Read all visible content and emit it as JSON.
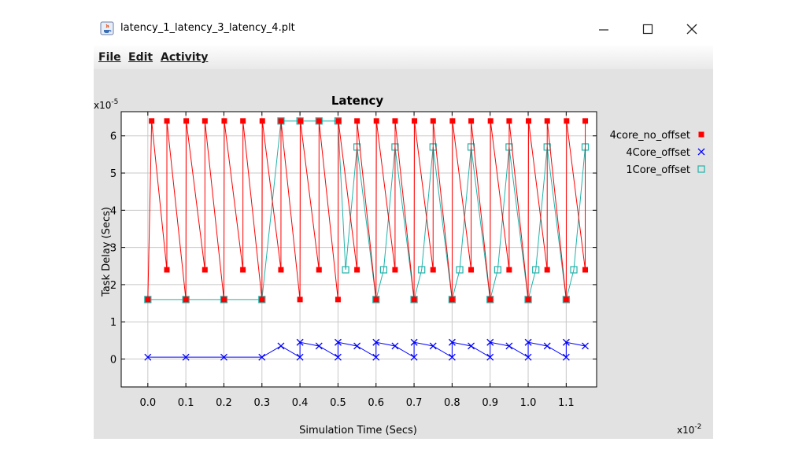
{
  "window": {
    "title": "latency_1_latency_3_latency_4.plt",
    "icon": "java-cup-icon",
    "controls": {
      "minimize": "minimize-icon",
      "maximize": "maximize-icon",
      "close": "close-icon"
    }
  },
  "menu": {
    "file": "File",
    "edit": "Edit",
    "activity": "Activity"
  },
  "chart_data": {
    "type": "line",
    "title": "Latency",
    "xlabel": "Simulation Time (Secs)",
    "ylabel": "Task Delay (Secs)",
    "x_multiplier": "x10",
    "x_multiplier_exp": "-2",
    "y_multiplier": "x10",
    "y_multiplier_exp": "-5",
    "xlim": [
      -0.07,
      1.18
    ],
    "ylim": [
      -0.75,
      6.65
    ],
    "x_ticks": [
      0.0,
      0.1,
      0.2,
      0.3,
      0.4,
      0.5,
      0.6,
      0.7,
      0.8,
      0.9,
      1.0,
      1.1
    ],
    "x_tick_labels": [
      "0.0",
      "0.1",
      "0.2",
      "0.3",
      "0.4",
      "0.5",
      "0.6",
      "0.7",
      "0.8",
      "0.9",
      "1.0",
      "1.1"
    ],
    "y_ticks": [
      0,
      1,
      2,
      3,
      4,
      5,
      6
    ],
    "y_tick_labels": [
      "0",
      "1",
      "2",
      "3",
      "4",
      "5",
      "6"
    ],
    "grid": true,
    "legend_position": "right",
    "series": [
      {
        "name": "4core_no_offset",
        "color": "#ff0000",
        "marker": "filled-square",
        "x": [
          0.0,
          0.01,
          0.05,
          0.0501,
          0.1,
          0.101,
          0.15,
          0.1501,
          0.2,
          0.201,
          0.25,
          0.2501,
          0.3,
          0.301,
          0.35,
          0.3501,
          0.4,
          0.401,
          0.45,
          0.4501,
          0.5,
          0.501,
          0.55,
          0.5501,
          0.6,
          0.601,
          0.65,
          0.6501,
          0.7,
          0.701,
          0.75,
          0.7501,
          0.8,
          0.801,
          0.85,
          0.8501,
          0.9,
          0.901,
          0.95,
          0.9501,
          1.0,
          1.001,
          1.05,
          1.0501,
          1.1,
          1.101,
          1.15,
          1.1501
        ],
        "y": [
          1.6,
          6.4,
          2.4,
          6.4,
          1.6,
          6.4,
          2.4,
          6.4,
          1.6,
          6.4,
          2.4,
          6.4,
          1.6,
          6.4,
          2.4,
          6.4,
          1.6,
          6.4,
          2.4,
          6.4,
          1.6,
          6.4,
          2.4,
          6.4,
          1.6,
          6.4,
          2.4,
          6.4,
          1.6,
          6.4,
          2.4,
          6.4,
          1.6,
          6.4,
          2.4,
          6.4,
          1.6,
          6.4,
          2.4,
          6.4,
          1.6,
          6.4,
          2.4,
          6.4,
          1.6,
          6.4,
          2.4,
          6.4
        ]
      },
      {
        "name": "4Core_offset",
        "color": "#0000ff",
        "marker": "x",
        "x": [
          0.0,
          0.1,
          0.2,
          0.3,
          0.35,
          0.4,
          0.4001,
          0.45,
          0.5,
          0.5001,
          0.55,
          0.6,
          0.6001,
          0.65,
          0.7,
          0.7001,
          0.75,
          0.8,
          0.8001,
          0.85,
          0.9,
          0.9001,
          0.95,
          1.0,
          1.0001,
          1.05,
          1.1,
          1.1001,
          1.15
        ],
        "y": [
          0.05,
          0.05,
          0.05,
          0.05,
          0.35,
          0.05,
          0.45,
          0.35,
          0.05,
          0.45,
          0.35,
          0.05,
          0.45,
          0.35,
          0.05,
          0.45,
          0.35,
          0.05,
          0.45,
          0.35,
          0.05,
          0.45,
          0.35,
          0.05,
          0.45,
          0.35,
          0.05,
          0.45,
          0.35
        ]
      },
      {
        "name": "1Core_offset",
        "color": "#20b2aa",
        "marker": "open-square",
        "x": [
          0.0,
          0.1,
          0.2,
          0.3,
          0.35,
          0.4,
          0.45,
          0.5,
          0.52,
          0.55,
          0.6,
          0.62,
          0.65,
          0.7,
          0.72,
          0.75,
          0.8,
          0.82,
          0.85,
          0.9,
          0.92,
          0.95,
          1.0,
          1.02,
          1.05,
          1.1,
          1.12,
          1.15
        ],
        "y": [
          1.6,
          1.6,
          1.6,
          1.6,
          6.4,
          6.4,
          6.4,
          6.4,
          2.4,
          5.7,
          1.6,
          2.4,
          5.7,
          1.6,
          2.4,
          5.7,
          1.6,
          2.4,
          5.7,
          1.6,
          2.4,
          5.7,
          1.6,
          2.4,
          5.7,
          1.6,
          2.4,
          5.7
        ]
      }
    ]
  }
}
